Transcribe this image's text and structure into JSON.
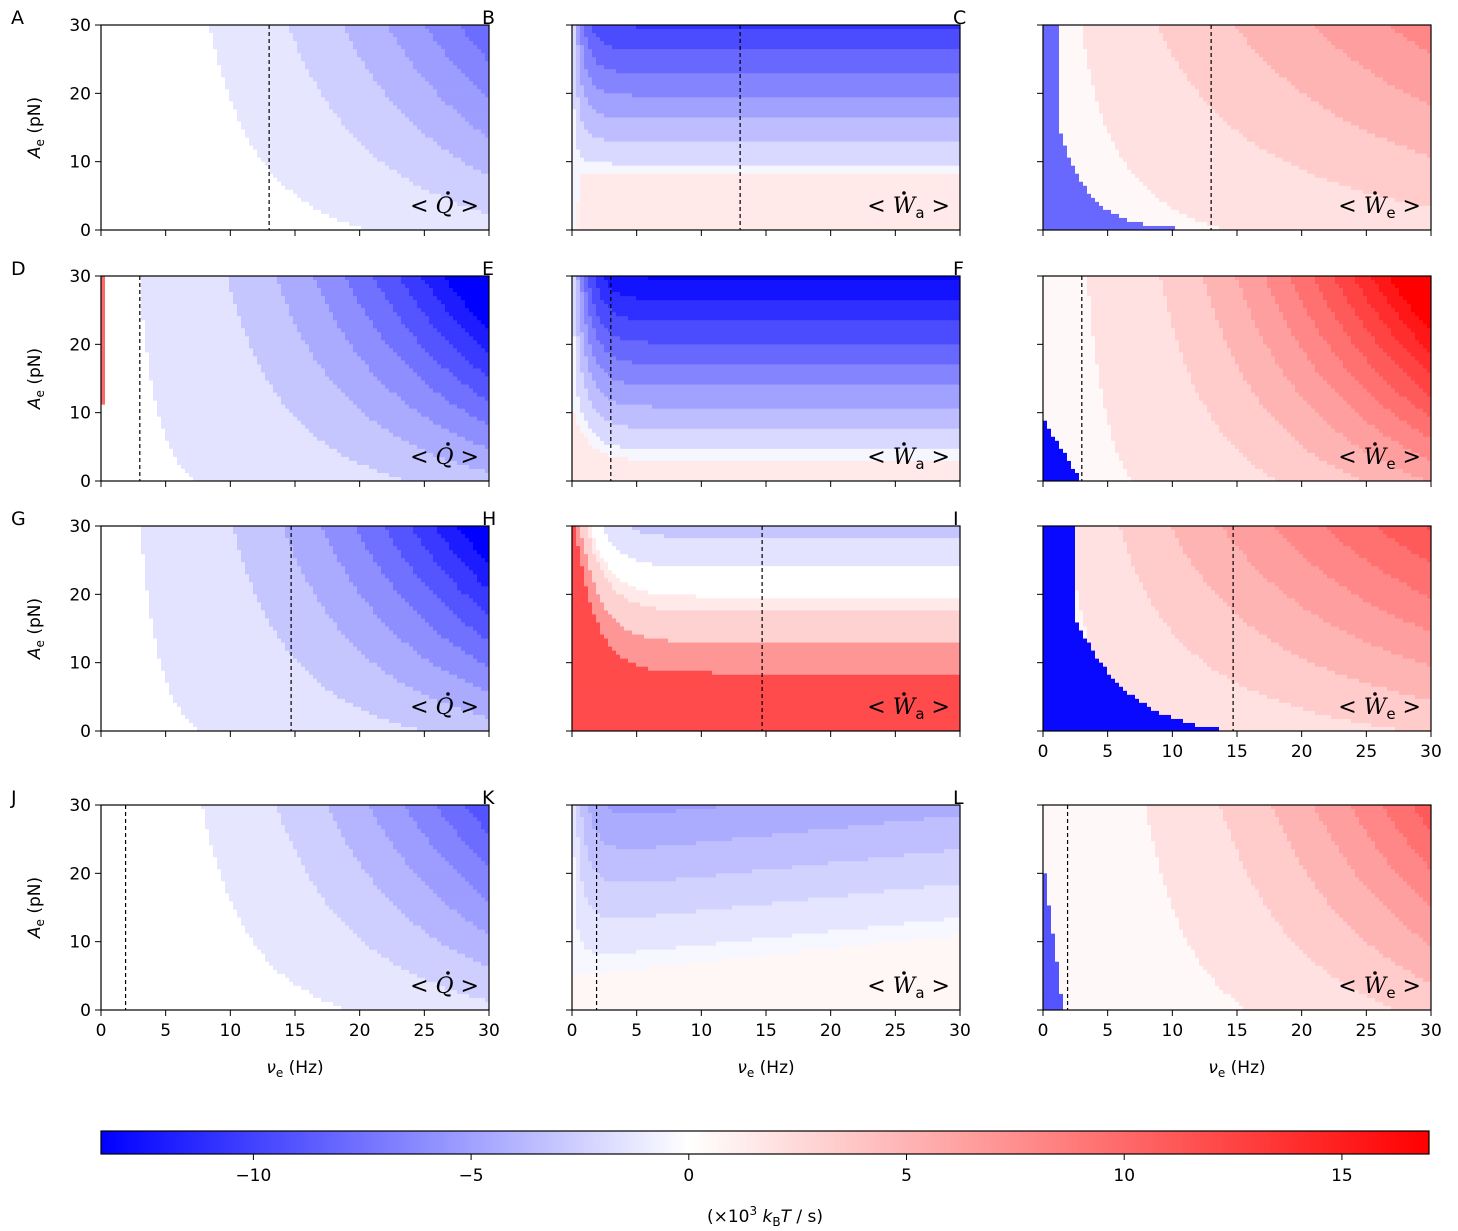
{
  "chart_data": {
    "type": "heatmap",
    "grid": {
      "rows": 4,
      "cols": 3
    },
    "shared_axes": {
      "x": {
        "label": "ν",
        "label_sub": "e",
        "label_unit": "(Hz)",
        "range": [
          0,
          30
        ],
        "ticks": [
          0,
          5,
          10,
          15,
          20,
          25,
          30
        ]
      },
      "y": {
        "label": "A",
        "label_sub": "e",
        "label_unit": "(pN)",
        "range": [
          0,
          30
        ],
        "ticks": [
          0,
          10,
          20,
          30
        ]
      }
    },
    "quantities": {
      "Q": {
        "sym": "Q",
        "sub": ""
      },
      "Wa": {
        "sym": "W",
        "sub": "a"
      },
      "We": {
        "sym": "W",
        "sub": "e"
      }
    },
    "colorbar": {
      "range": [
        -13.5,
        17
      ],
      "ticks": [
        -10,
        -5,
        0,
        5,
        10,
        15
      ],
      "tick_labels": [
        "−10",
        "−5",
        "0",
        "5",
        "10",
        "15"
      ],
      "label_prefix": "(×10",
      "label_exp": "3",
      "label_k": "k",
      "label_ksub": "B",
      "label_T": "T",
      "label_suffix": " / s)",
      "colors": {
        "negative": "#0000ff",
        "zero": "#ffffff",
        "positive": "#ff0000"
      }
    },
    "panels": [
      {
        "letter": "A",
        "quantity": "Q",
        "vline": 13.0
      },
      {
        "letter": "B",
        "quantity": "Wa",
        "vline": 13.0
      },
      {
        "letter": "C",
        "quantity": "We",
        "vline": 13.0
      },
      {
        "letter": "D",
        "quantity": "Q",
        "vline": 3.0
      },
      {
        "letter": "E",
        "quantity": "Wa",
        "vline": 3.0
      },
      {
        "letter": "F",
        "quantity": "We",
        "vline": 3.0
      },
      {
        "letter": "G",
        "quantity": "Q",
        "vline": 14.7
      },
      {
        "letter": "H",
        "quantity": "Wa",
        "vline": 14.7
      },
      {
        "letter": "I",
        "quantity": "We",
        "vline": 14.7
      },
      {
        "letter": "J",
        "quantity": "Q",
        "vline": 1.9
      },
      {
        "letter": "K",
        "quantity": "Wa",
        "vline": 1.9
      },
      {
        "letter": "L",
        "quantity": "We",
        "vline": 1.9
      }
    ]
  }
}
